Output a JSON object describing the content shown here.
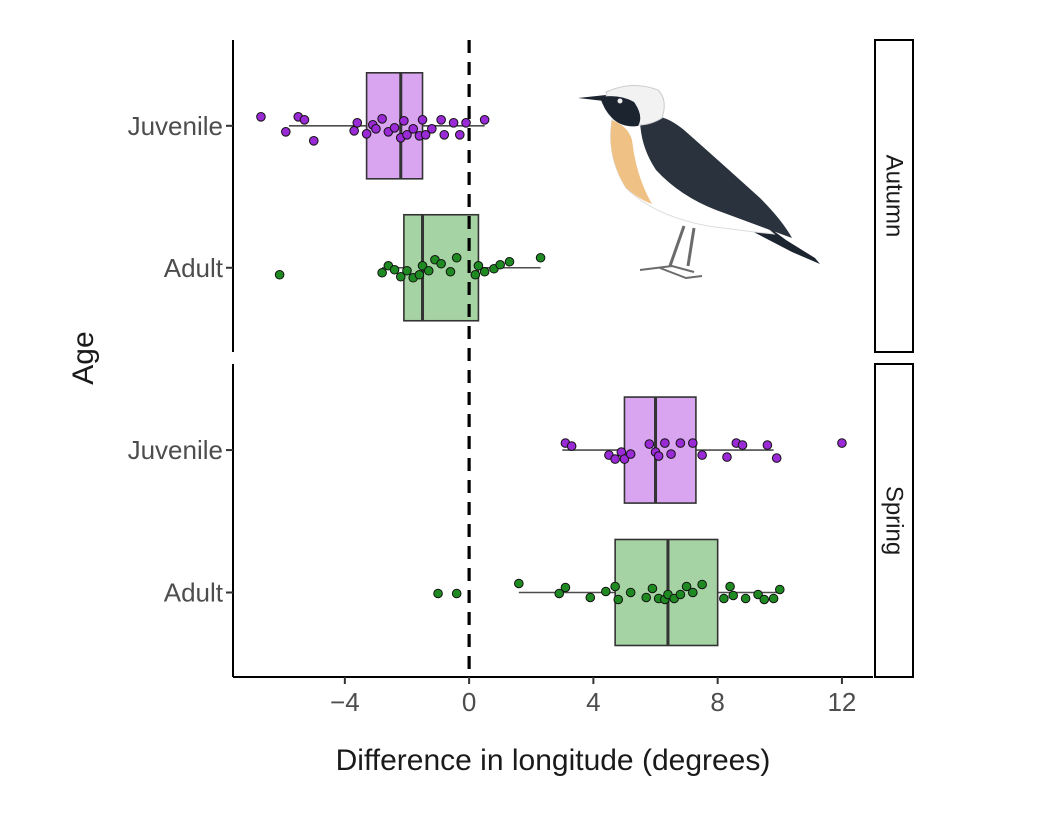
{
  "chart_data": {
    "type": "boxplot",
    "xlabel": "Difference in longitude (degrees)",
    "ylabel": "Age",
    "xlim": [
      -7.6,
      13
    ],
    "x_ticks": [
      -4,
      0,
      4,
      8,
      12
    ],
    "x_tick_labels": [
      "−4",
      "0",
      "4",
      "8",
      "12"
    ],
    "reference_line": {
      "x": 0,
      "style": "dashed"
    },
    "colors": {
      "Juvenile": "#d9a5f0",
      "Adult": "#a6d3a3",
      "Juvenile_point": "#9a2ad6",
      "Adult_point": "#1f8a22"
    },
    "facets": [
      {
        "label": "Autumn",
        "groups": [
          {
            "name": "Juvenile",
            "box": {
              "whisker_low": -5.8,
              "q1": -3.3,
              "median": -2.2,
              "q3": -1.5,
              "whisker_high": 0.5
            },
            "points": [
              [
                -6.7,
                -0.09
              ],
              [
                -5.9,
                0.06
              ],
              [
                -5.5,
                -0.09
              ],
              [
                -5.0,
                0.15
              ],
              [
                -5.3,
                -0.06
              ],
              [
                -3.7,
                0.05
              ],
              [
                -3.6,
                -0.03
              ],
              [
                -3.3,
                0.08
              ],
              [
                -3.1,
                -0.01
              ],
              [
                -3.0,
                0.03
              ],
              [
                -2.8,
                -0.07
              ],
              [
                -2.6,
                0.06
              ],
              [
                -2.4,
                0.02
              ],
              [
                -2.2,
                0.12
              ],
              [
                -2.1,
                -0.05
              ],
              [
                -2.0,
                0.09
              ],
              [
                -1.8,
                0.03
              ],
              [
                -1.6,
                0.1
              ],
              [
                -1.5,
                -0.06
              ],
              [
                -1.4,
                0.09
              ],
              [
                -1.2,
                0.03
              ],
              [
                -0.9,
                -0.06
              ],
              [
                -0.8,
                0.09
              ],
              [
                -0.5,
                -0.03
              ],
              [
                -0.3,
                0.09
              ],
              [
                -0.1,
                -0.03
              ],
              [
                0.5,
                -0.06
              ]
            ]
          },
          {
            "name": "Adult",
            "box": {
              "whisker_low": -2.8,
              "q1": -2.1,
              "median": -1.5,
              "q3": 0.3,
              "whisker_high": 2.3
            },
            "points": [
              [
                -6.1,
                0.07
              ],
              [
                -2.8,
                0.05
              ],
              [
                -2.6,
                -0.02
              ],
              [
                -2.4,
                0.02
              ],
              [
                -2.2,
                0.09
              ],
              [
                -2.0,
                0.03
              ],
              [
                -1.8,
                0.1
              ],
              [
                -1.6,
                0.07
              ],
              [
                -1.5,
                -0.02
              ],
              [
                -1.3,
                0.03
              ],
              [
                -1.1,
                -0.08
              ],
              [
                -0.9,
                -0.04
              ],
              [
                -0.6,
                0.04
              ],
              [
                -0.4,
                -0.1
              ],
              [
                0.2,
                0.07
              ],
              [
                0.3,
                -0.02
              ],
              [
                0.5,
                0.04
              ],
              [
                0.8,
                0.01
              ],
              [
                1.0,
                -0.03
              ],
              [
                1.3,
                -0.06
              ],
              [
                2.3,
                -0.1
              ]
            ]
          }
        ]
      },
      {
        "label": "Spring",
        "groups": [
          {
            "name": "Juvenile",
            "box": {
              "whisker_low": 3.0,
              "q1": 5.0,
              "median": 6.0,
              "q3": 7.3,
              "whisker_high": 9.8
            },
            "points": [
              [
                3.1,
                -0.07
              ],
              [
                3.3,
                -0.04
              ],
              [
                4.5,
                0.05
              ],
              [
                4.7,
                0.09
              ],
              [
                4.9,
                0.02
              ],
              [
                5.0,
                0.09
              ],
              [
                5.2,
                0.04
              ],
              [
                5.8,
                -0.06
              ],
              [
                6.0,
                0.02
              ],
              [
                6.1,
                0.06
              ],
              [
                6.3,
                -0.07
              ],
              [
                6.5,
                0.04
              ],
              [
                6.8,
                -0.07
              ],
              [
                7.2,
                -0.07
              ],
              [
                7.5,
                0.05
              ],
              [
                8.3,
                0.07
              ],
              [
                8.6,
                -0.07
              ],
              [
                8.8,
                -0.05
              ],
              [
                9.6,
                -0.05
              ],
              [
                9.9,
                0.08
              ],
              [
                12.0,
                -0.07
              ]
            ]
          },
          {
            "name": "Adult",
            "box": {
              "whisker_low": 1.6,
              "q1": 4.7,
              "median": 6.4,
              "q3": 8.0,
              "whisker_high": 10.0
            },
            "points": [
              [
                -1.0,
                0.01
              ],
              [
                -0.4,
                0.01
              ],
              [
                1.6,
                -0.09
              ],
              [
                2.9,
                0.01
              ],
              [
                3.1,
                -0.05
              ],
              [
                3.9,
                0.05
              ],
              [
                4.4,
                -0.01
              ],
              [
                4.7,
                -0.06
              ],
              [
                4.8,
                0.07
              ],
              [
                5.2,
                0.0
              ],
              [
                5.7,
                0.05
              ],
              [
                5.9,
                -0.04
              ],
              [
                6.1,
                0.06
              ],
              [
                6.3,
                0.07
              ],
              [
                6.4,
                0.02
              ],
              [
                6.6,
                0.06
              ],
              [
                6.8,
                0.02
              ],
              [
                7.0,
                -0.06
              ],
              [
                7.2,
                0.0
              ],
              [
                7.5,
                -0.08
              ],
              [
                8.2,
                0.06
              ],
              [
                8.4,
                -0.06
              ],
              [
                8.5,
                0.03
              ],
              [
                8.9,
                0.06
              ],
              [
                9.3,
                0.02
              ],
              [
                9.5,
                0.07
              ],
              [
                9.8,
                0.06
              ],
              [
                10.0,
                -0.03
              ]
            ]
          }
        ]
      }
    ]
  }
}
